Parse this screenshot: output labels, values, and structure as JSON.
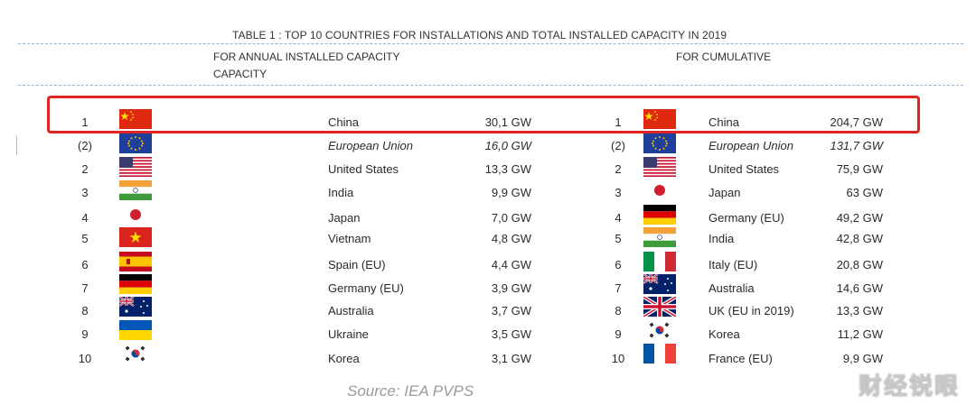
{
  "title": "TABLE 1 : TOP 10 COUNTRIES FOR INSTALLATIONS AND TOTAL INSTALLED CAPACITY IN 2019",
  "headers": {
    "annual_line1": "FOR ANNUAL INSTALLED CAPACITY",
    "annual_line2": "CAPACITY",
    "cumulative": "FOR CUMULATIVE"
  },
  "annual": [
    {
      "rank": "1",
      "flag": "china-flag",
      "country": "China",
      "value": "30,1 GW",
      "italic": false
    },
    {
      "rank": "(2)",
      "flag": "eu-flag",
      "country": "European Union",
      "value": "16,0 GW",
      "italic": true
    },
    {
      "rank": "2",
      "flag": "usa-flag",
      "country": "United States",
      "value": "13,3 GW",
      "italic": false
    },
    {
      "rank": "3",
      "flag": "india-flag",
      "country": "India",
      "value": "9,9 GW",
      "italic": false
    },
    {
      "rank": "4",
      "flag": "japan-flag",
      "country": "Japan",
      "value": "7,0 GW",
      "italic": false
    },
    {
      "rank": "5",
      "flag": "vietnam-flag",
      "country": "Vietnam",
      "value": "4,8 GW",
      "italic": false
    },
    {
      "rank": "6",
      "flag": "spain-flag",
      "country": "Spain (EU)",
      "value": "4,4 GW",
      "italic": false
    },
    {
      "rank": "7",
      "flag": "germany-flag",
      "country": "Germany (EU)",
      "value": "3,9 GW",
      "italic": false
    },
    {
      "rank": "8",
      "flag": "australia-flag",
      "country": "Australia",
      "value": "3,7 GW",
      "italic": false
    },
    {
      "rank": "9",
      "flag": "ukraine-flag",
      "country": "Ukraine",
      "value": "3,5 GW",
      "italic": false
    },
    {
      "rank": "10",
      "flag": "korea-flag",
      "country": "Korea",
      "value": "3,1 GW",
      "italic": false
    }
  ],
  "cumulative": [
    {
      "rank": "1",
      "flag": "china-flag",
      "country": "China",
      "value": "204,7 GW",
      "italic": false
    },
    {
      "rank": "(2)",
      "flag": "eu-flag",
      "country": "European Union",
      "value": "131,7 GW",
      "italic": true
    },
    {
      "rank": "2",
      "flag": "usa-flag",
      "country": "United States",
      "value": "75,9 GW",
      "italic": false
    },
    {
      "rank": "3",
      "flag": "japan-flag",
      "country": "Japan",
      "value": "63 GW",
      "italic": false
    },
    {
      "rank": "4",
      "flag": "germany-flag",
      "country": "Germany (EU)",
      "value": "49,2 GW",
      "italic": false
    },
    {
      "rank": "5",
      "flag": "india-flag",
      "country": "India",
      "value": "42,8 GW",
      "italic": false
    },
    {
      "rank": "6",
      "flag": "italy-flag",
      "country": "Italy (EU)",
      "value": "20,8 GW",
      "italic": false
    },
    {
      "rank": "7",
      "flag": "australia-flag",
      "country": "Australia",
      "value": "14,6 GW",
      "italic": false
    },
    {
      "rank": "8",
      "flag": "uk-flag",
      "country": "UK (EU in 2019)",
      "value": "13,3 GW",
      "italic": false
    },
    {
      "rank": "9",
      "flag": "korea-flag",
      "country": "Korea",
      "value": "11,2 GW",
      "italic": false
    },
    {
      "rank": "10",
      "flag": "france-flag",
      "country": "France (EU)",
      "value": "9,9 GW",
      "italic": false
    }
  ],
  "source": "Source: IEA PVPS",
  "watermark": "财经锐眼",
  "colors": {
    "highlight": "#e02424",
    "divider": "#8fb3d9"
  }
}
